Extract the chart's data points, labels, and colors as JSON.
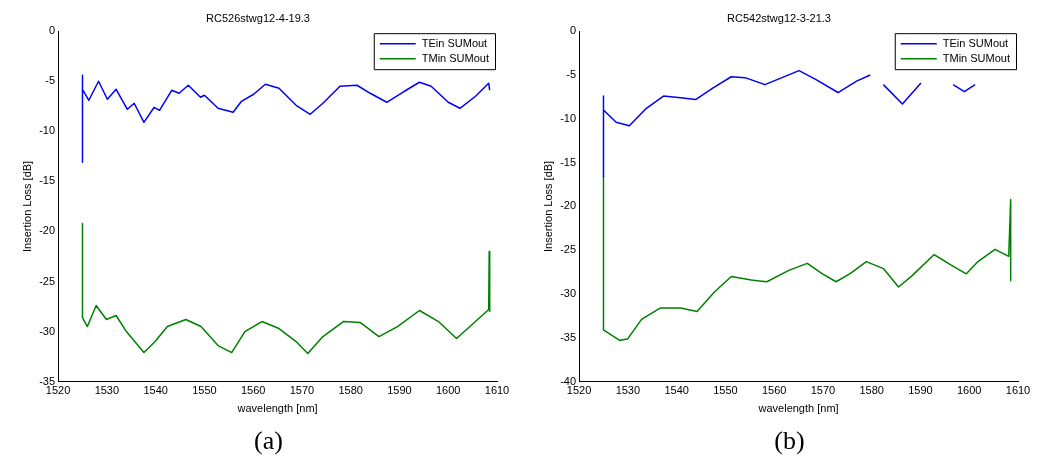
{
  "chart_data": [
    {
      "type": "line",
      "title": "RC526stwg12-4-19.3",
      "xlabel": "wavelength [nm]",
      "ylabel": "Insertion Loss [dB]",
      "xlim": [
        1520,
        1610
      ],
      "ylim": [
        -35,
        0
      ],
      "xticks": [
        1520,
        1530,
        1540,
        1550,
        1560,
        1570,
        1580,
        1590,
        1600,
        1610
      ],
      "yticks": [
        -35,
        -30,
        -25,
        -20,
        -15,
        -10,
        -5,
        0
      ],
      "legend": "top right",
      "grid": false,
      "annotations": [
        "(a)"
      ],
      "series": [
        {
          "name": "TEin SUMout",
          "color": "#0000ff",
          "x": [
            1525,
            1525,
            1525,
            1526.3,
            1528.3,
            1530.1,
            1531.9,
            1534.2,
            1535.6,
            1537.6,
            1539.7,
            1540.8,
            1543.3,
            1544.8,
            1546.7,
            1549.2,
            1550,
            1552.8,
            1555.9,
            1557.6,
            1560.1,
            1562.5,
            1565.3,
            1568.8,
            1571.7,
            1574.3,
            1577.8,
            1581.3,
            1584,
            1587.4,
            1591,
            1594.1,
            1596.5,
            1600,
            1602.4,
            1605.6,
            1608.3,
            1608.5
          ],
          "values": [
            -4.4,
            -13.1,
            -5.8,
            -6.9,
            -5,
            -6.8,
            -5.8,
            -7.8,
            -7.2,
            -9.1,
            -7.6,
            -7.9,
            -5.9,
            -6.2,
            -5.4,
            -6.6,
            -6.4,
            -7.7,
            -8.1,
            -7,
            -6.3,
            -5.3,
            -5.7,
            -7.4,
            -8.3,
            -7.2,
            -5.5,
            -5.4,
            -6.2,
            -7.1,
            -6,
            -5.1,
            -5.5,
            -7.1,
            -7.7,
            -6.5,
            -5.2,
            -5.9
          ]
        },
        {
          "name": "TMin SUMout",
          "color": "#008000",
          "x": [
            1525,
            1525,
            1526,
            1527.8,
            1529.9,
            1531.9,
            1534,
            1537.6,
            1539.9,
            1542.4,
            1546.2,
            1549.3,
            1552.8,
            1555.6,
            1558.3,
            1561.8,
            1565.3,
            1568.8,
            1571.2,
            1574.3,
            1578.5,
            1582,
            1585.8,
            1589.6,
            1594.1,
            1598,
            1601.7,
            1604.9,
            1608.3,
            1608.4,
            1608.5
          ],
          "values": [
            -19.2,
            -28.6,
            -29.5,
            -27.4,
            -28.8,
            -28.4,
            -30,
            -32.1,
            -31,
            -29.5,
            -28.8,
            -29.5,
            -31.4,
            -32.1,
            -30,
            -29,
            -29.7,
            -31,
            -32.2,
            -30.5,
            -29,
            -29.1,
            -30.5,
            -29.5,
            -27.9,
            -29,
            -30.7,
            -29.3,
            -27.8,
            -22,
            -28
          ]
        }
      ]
    },
    {
      "type": "line",
      "title": "RC542stwg12-3-21.3",
      "xlabel": "wavelength [nm]",
      "ylabel": "Insertion Loss [dB]",
      "xlim": [
        1520,
        1610
      ],
      "ylim": [
        -40,
        0
      ],
      "xticks": [
        1520,
        1530,
        1540,
        1550,
        1560,
        1570,
        1580,
        1590,
        1600,
        1610
      ],
      "yticks": [
        -40,
        -35,
        -30,
        -25,
        -20,
        -15,
        -10,
        -5,
        0
      ],
      "legend": "top right",
      "grid": false,
      "annotations": [
        "(b)"
      ],
      "series": [
        {
          "name": "TEin SUMout",
          "color": "#0000ff",
          "x": [
            1525,
            1525,
            1525,
            1527.6,
            1530.3,
            1533.8,
            1537.3,
            1540.8,
            1543.9,
            1547.4,
            1551.2,
            1554,
            1558.1,
            1561.6,
            1565.1,
            1568.5,
            1573.1,
            1576.9,
            1579.7,
            1581,
            1582.4,
            1586.3,
            1590.1,
            1593,
            1596.7,
            1599,
            1601.2
          ],
          "values": [
            -7.4,
            -16.6,
            -9,
            -10.4,
            -10.8,
            -8.8,
            -7.4,
            -7.6,
            -7.8,
            -6.5,
            -5.2,
            -5.3,
            -6.1,
            -5.3,
            -4.5,
            -5.5,
            -7,
            -5.7,
            -5,
            null,
            -6.1,
            -8.3,
            -5.9,
            null,
            -6.1,
            -6.9,
            -6.1
          ]
        },
        {
          "name": "TMin SUMout",
          "color": "#008000",
          "x": [
            1525,
            1525,
            1528.3,
            1530,
            1532.8,
            1536.6,
            1540.8,
            1544.2,
            1547.7,
            1551.2,
            1555.3,
            1558.5,
            1563,
            1566.8,
            1569.9,
            1572.7,
            1575.5,
            1578.9,
            1582.4,
            1585.5,
            1588.3,
            1592.8,
            1596.3,
            1599.4,
            1601.8,
            1605.3,
            1608.1,
            1608.5,
            1608.5
          ],
          "values": [
            -16.5,
            -34.1,
            -35.3,
            -35.1,
            -32.9,
            -31.6,
            -31.6,
            -32,
            -29.8,
            -28,
            -28.4,
            -28.6,
            -27.3,
            -26.5,
            -27.7,
            -28.6,
            -27.7,
            -26.3,
            -27.1,
            -29.2,
            -27.9,
            -25.5,
            -26.7,
            -27.7,
            -26.3,
            -24.9,
            -25.7,
            -19.2,
            -28.5
          ]
        }
      ]
    }
  ]
}
